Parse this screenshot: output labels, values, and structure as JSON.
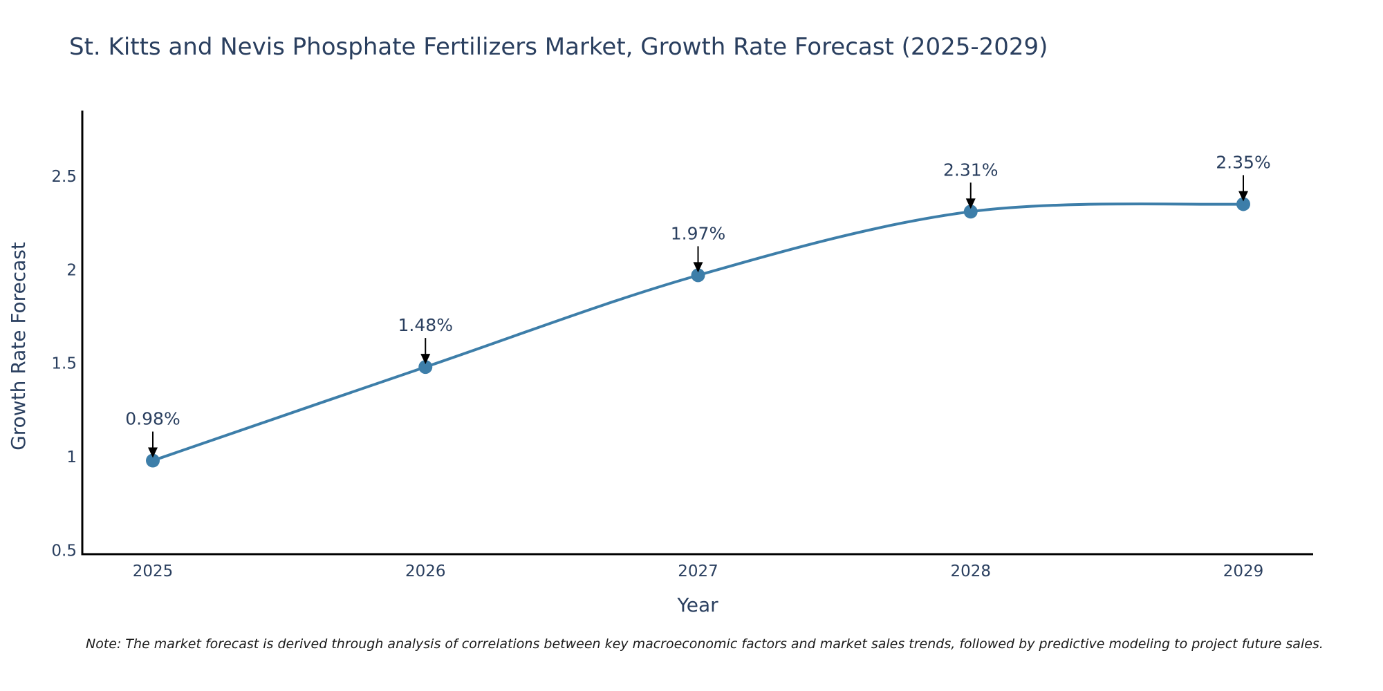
{
  "chart_data": {
    "type": "line",
    "title": "St. Kitts and Nevis Phosphate Fertilizers Market, Growth Rate Forecast (2025-2029)",
    "xlabel": "Year",
    "ylabel": "Growth Rate Forecast",
    "categories": [
      "2025",
      "2026",
      "2027",
      "2028",
      "2029"
    ],
    "series": [
      {
        "name": "Growth Rate Forecast",
        "values": [
          0.98,
          1.48,
          1.97,
          2.31,
          2.35
        ],
        "color": "#3d7ea9"
      }
    ],
    "data_labels": [
      "0.98%",
      "1.48%",
      "1.97%",
      "2.31%",
      "2.35%"
    ],
    "ylim": [
      0.48,
      2.85
    ],
    "yticks": [
      0.5,
      1,
      1.5,
      2,
      2.5
    ],
    "ytick_labels": [
      "0.5",
      "1",
      "1.5",
      "2",
      "2.5"
    ],
    "grid": false,
    "legend": "none"
  },
  "note": "Note: The market forecast is derived through analysis of correlations between key macroeconomic factors and market sales trends, followed by predictive modeling to project future sales."
}
